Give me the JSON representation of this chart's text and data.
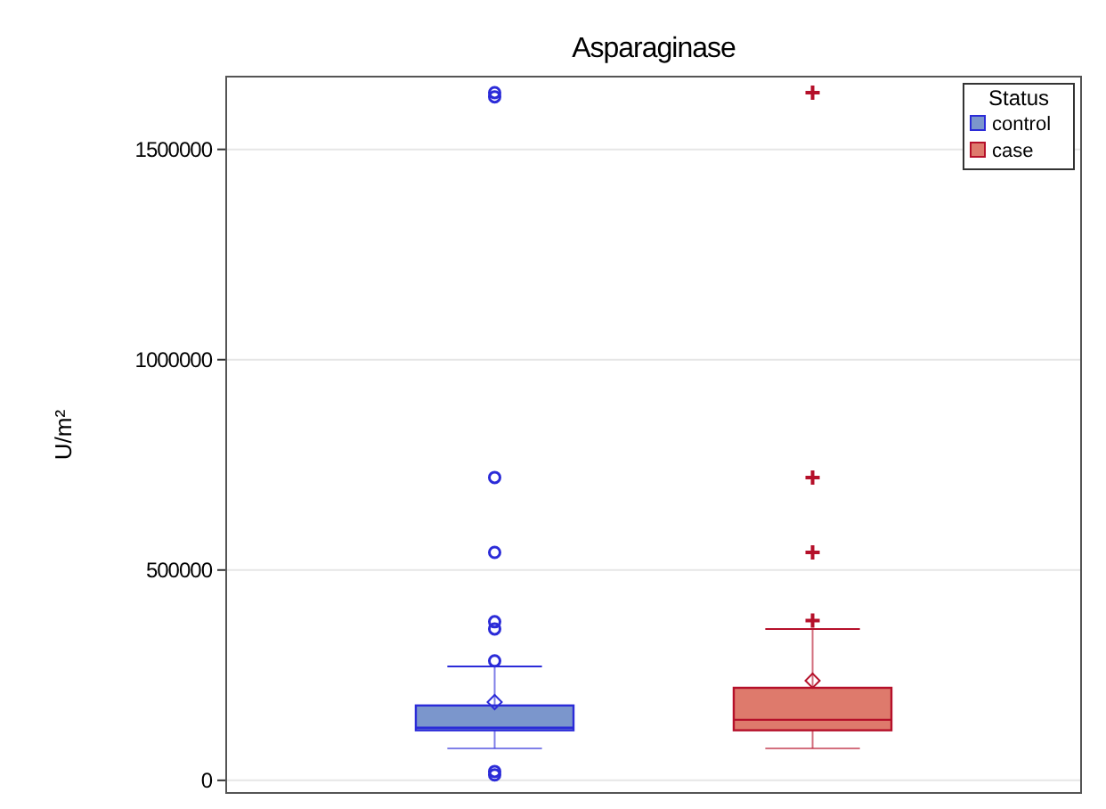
{
  "chart_data": {
    "type": "box",
    "title": "Asparaginase",
    "ylabel": "U/m²",
    "legend_title": "Status",
    "legend": "top right",
    "grid": "y",
    "categories": [
      null
    ],
    "ylim": [
      -30000,
      1673000
    ],
    "yticks": [
      0,
      500000,
      1000000,
      1500000
    ],
    "series": [
      {
        "name": "control",
        "color": "#7b96cc",
        "marker": "circle",
        "boxes": [
          {
            "low": 76000,
            "q1": 119000,
            "median": 125000,
            "q3": 178000,
            "high": 271000,
            "mean": 186000,
            "outliers": [
              13000,
              21000,
              284000,
              360000,
              377000,
              542000,
              720000,
              1625000,
              1635000
            ]
          }
        ]
      },
      {
        "name": "case",
        "color": "#de7a6c",
        "marker": "cross",
        "boxes": [
          {
            "low": 76000,
            "q1": 119000,
            "median": 144000,
            "q3": 220000,
            "high": 360000,
            "mean": 237000,
            "outliers": [
              380000,
              542000,
              720000,
              1635000
            ]
          }
        ]
      }
    ]
  }
}
